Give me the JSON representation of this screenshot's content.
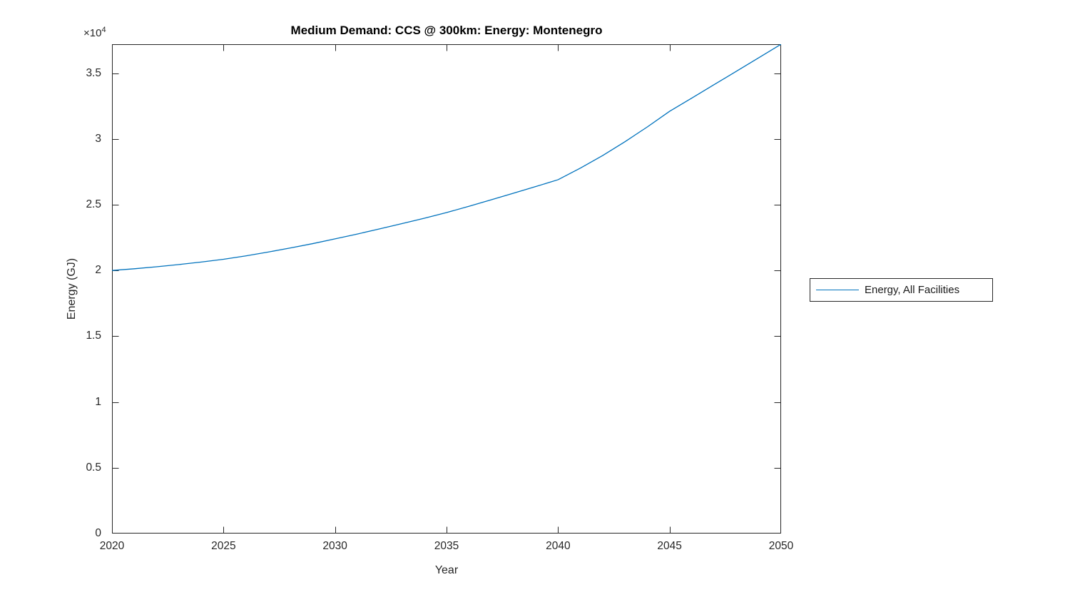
{
  "figure": {
    "background_color": "#ffffff",
    "axis_color": "#262626"
  },
  "chart_data": {
    "type": "line",
    "title": "Medium Demand: CCS @ 300km: Energy: Montenegro",
    "xlabel": "Year",
    "ylabel": "Energy (GJ)",
    "y_multiplier_base": "×10",
    "y_multiplier_exponent": "4",
    "xlim": [
      2020,
      2050
    ],
    "ylim": [
      0,
      37200
    ],
    "x_ticks": [
      2020,
      2025,
      2030,
      2035,
      2040,
      2045,
      2050
    ],
    "x_tick_labels": [
      "2020",
      "2025",
      "2030",
      "2035",
      "2040",
      "2045",
      "2050"
    ],
    "y_ticks": [
      0,
      5000,
      10000,
      15000,
      20000,
      25000,
      30000,
      35000
    ],
    "y_tick_labels": [
      "0",
      "0.5",
      "1",
      "1.5",
      "2",
      "2.5",
      "3",
      "3.5"
    ],
    "grid": false,
    "box": true,
    "tick_direction": "in",
    "legend": {
      "position": "outside-right",
      "entries": [
        {
          "label": "Energy, All Facilities",
          "color": "#0072BD"
        }
      ]
    },
    "series": [
      {
        "name": "Energy, All Facilities",
        "color": "#0072BD",
        "x": [
          2020,
          2021,
          2022,
          2023,
          2024,
          2025,
          2026,
          2027,
          2028,
          2029,
          2030,
          2031,
          2032,
          2033,
          2034,
          2035,
          2036,
          2037,
          2038,
          2039,
          2040,
          2041,
          2042,
          2043,
          2044,
          2045,
          2046,
          2047,
          2048,
          2049,
          2050
        ],
        "y": [
          20000,
          20130,
          20280,
          20450,
          20640,
          20850,
          21110,
          21400,
          21710,
          22040,
          22400,
          22770,
          23160,
          23560,
          23970,
          24400,
          24880,
          25370,
          25870,
          26380,
          26900,
          27780,
          28740,
          29790,
          30910,
          32100,
          33110,
          34130,
          35150,
          36170,
          37200
        ]
      }
    ]
  }
}
